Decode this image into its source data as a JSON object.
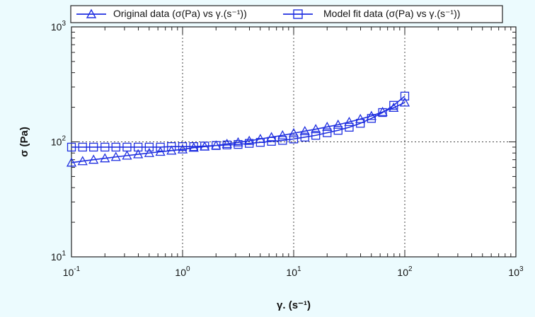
{
  "chart_data": {
    "type": "line",
    "title": "",
    "xlabel": "γ. (s⁻¹)",
    "ylabel": "σ (Pa)",
    "x_scale": "log",
    "y_scale": "log",
    "xlim": [
      0.1,
      1000
    ],
    "ylim": [
      10,
      1000
    ],
    "grid": true,
    "legend_position": "top",
    "x_ticks": [
      {
        "base": "10",
        "exp": "-1",
        "value": 0.1
      },
      {
        "base": "10",
        "exp": "0",
        "value": 1
      },
      {
        "base": "10",
        "exp": "1",
        "value": 10
      },
      {
        "base": "10",
        "exp": "2",
        "value": 100
      },
      {
        "base": "10",
        "exp": "3",
        "value": 1000
      }
    ],
    "y_ticks": [
      {
        "base": "10",
        "exp": "1",
        "value": 10
      },
      {
        "base": "10",
        "exp": "2",
        "value": 100
      },
      {
        "base": "10",
        "exp": "3",
        "value": 1000
      }
    ],
    "series": [
      {
        "name": "Original data (σ(Pa) vs γ.(s⁻¹))",
        "marker": "triangle",
        "color": "#1f2fe0",
        "x": [
          0.1,
          0.126,
          0.158,
          0.2,
          0.251,
          0.316,
          0.398,
          0.501,
          0.631,
          0.794,
          1,
          1.26,
          1.58,
          2,
          2.51,
          3.16,
          3.98,
          5.01,
          6.31,
          7.94,
          10,
          12.6,
          15.8,
          20,
          25.1,
          31.6,
          39.8,
          50.1,
          63.1,
          79.4,
          100
        ],
        "y": [
          66,
          68,
          70,
          72,
          74,
          76,
          78,
          80,
          82,
          84,
          86,
          89,
          91,
          93,
          96,
          99,
          102,
          106,
          110,
          114,
          119,
          124,
          129,
          135,
          141,
          149,
          158,
          168,
          182,
          198,
          220
        ]
      },
      {
        "name": "Model fit data (σ(Pa) vs γ.(s⁻¹))",
        "marker": "square",
        "color": "#1f2fe0",
        "x": [
          0.1,
          0.126,
          0.158,
          0.2,
          0.251,
          0.316,
          0.398,
          0.501,
          0.631,
          0.794,
          1,
          1.26,
          1.58,
          2,
          2.51,
          3.16,
          3.98,
          5.01,
          6.31,
          7.94,
          10,
          12.6,
          15.8,
          20,
          25.1,
          31.6,
          39.8,
          50.1,
          63.1,
          79.4,
          100
        ],
        "y": [
          90,
          90,
          90,
          90,
          90,
          90,
          90,
          90,
          90,
          91,
          91,
          91,
          92,
          93,
          94,
          95,
          97,
          99,
          101,
          103,
          106,
          110,
          114,
          120,
          126,
          134,
          145,
          160,
          180,
          208,
          250
        ]
      }
    ]
  }
}
